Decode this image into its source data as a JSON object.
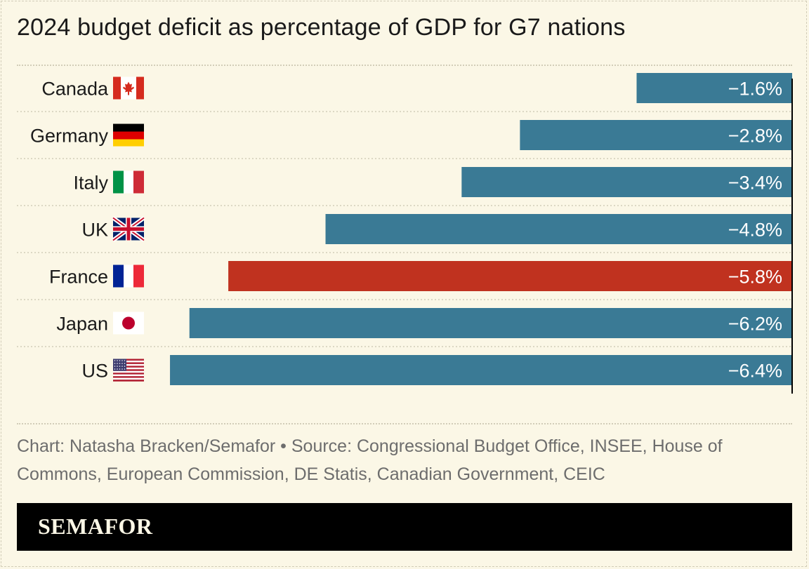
{
  "title": "2024 budget deficit as percentage of GDP for G7 nations",
  "caption": "Chart: Natasha Bracken/Semafor • Source: Congressional Budget Office, INSEE, House of Commons, European Commission, DE Statis, Canadian Government, CEIC",
  "brand": "SEMAFOR",
  "colors": {
    "background": "#fbf7e6",
    "bar": "#3a7a95",
    "highlight": "#c0321f",
    "bar_label": "#ffffff",
    "category_label": "#1a1a1a"
  },
  "chart_data": {
    "type": "bar",
    "orientation": "horizontal",
    "categories": [
      "Canada",
      "Germany",
      "Italy",
      "UK",
      "France",
      "Japan",
      "US"
    ],
    "values": [
      -1.6,
      -2.8,
      -3.4,
      -4.8,
      -5.8,
      -6.2,
      -6.4
    ],
    "labels": [
      "−1.6%",
      "−2.8%",
      "−3.4%",
      "−4.8%",
      "−5.8%",
      "−6.2%",
      "−6.4%"
    ],
    "flags": [
      "flag-canada-icon",
      "flag-germany-icon",
      "flag-italy-icon",
      "flag-uk-icon",
      "flag-france-icon",
      "flag-japan-icon",
      "flag-us-icon"
    ],
    "highlight": "France",
    "xlim": [
      -7,
      0
    ],
    "grid": false
  }
}
